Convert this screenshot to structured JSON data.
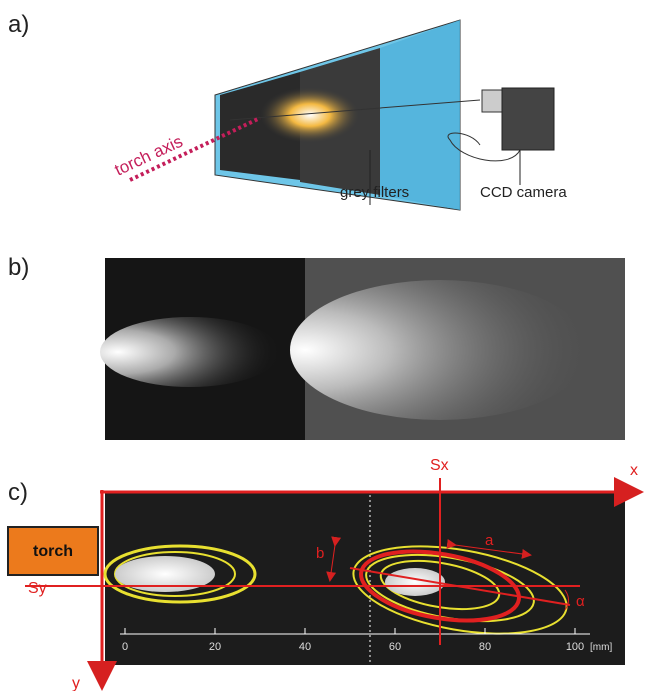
{
  "panel_a": {
    "label": "a)",
    "annotations": {
      "torch_axis": "torch axis",
      "grey_filters": "grey filters",
      "ccd_camera": "CCD camera"
    }
  },
  "panel_b": {
    "label": "b)"
  },
  "panel_c": {
    "label": "c)",
    "axis_x": "x",
    "axis_y": "y",
    "sx": "Sx",
    "sy": "Sy",
    "torch": "torch",
    "axis_a": "a",
    "axis_b": "b",
    "angle": "α",
    "scale": {
      "ticks": [
        0,
        20,
        40,
        60,
        80,
        100
      ],
      "unit": "[mm]"
    }
  }
}
